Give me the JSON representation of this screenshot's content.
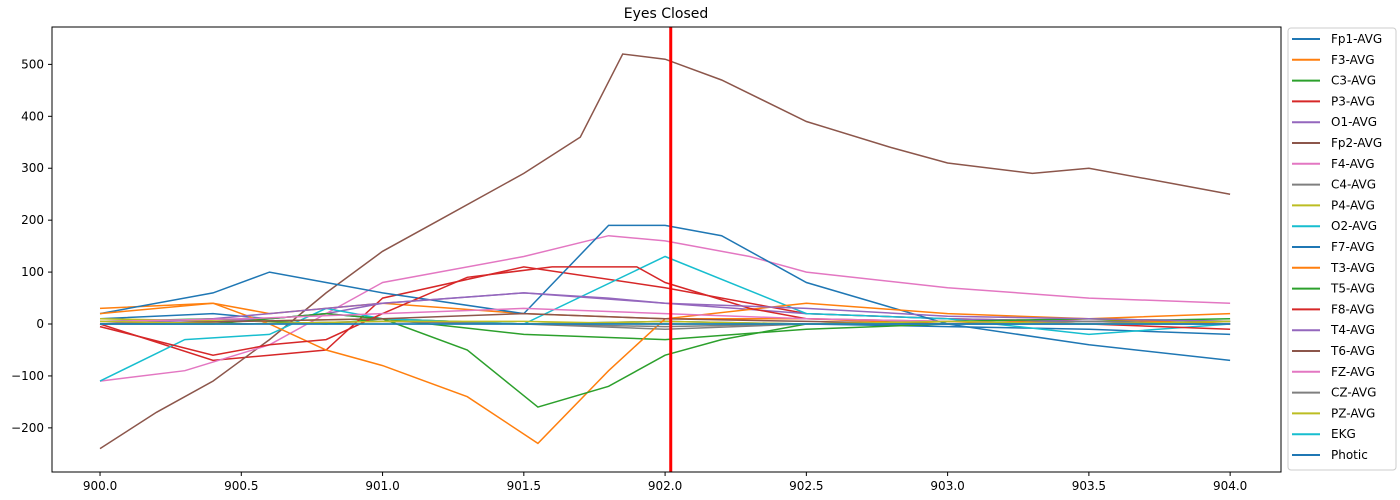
{
  "chart_data": {
    "type": "line",
    "title": "Eyes Closed",
    "xlabel": "",
    "ylabel": "",
    "xlim": [
      899.83,
      904.18
    ],
    "ylim": [
      -285,
      572
    ],
    "x_ticks": [
      900.0,
      900.5,
      901.0,
      901.5,
      902.0,
      902.5,
      903.0,
      903.5,
      904.0
    ],
    "x_tick_labels": [
      "900.0",
      "900.5",
      "901.0",
      "901.5",
      "902.0",
      "902.5",
      "903.0",
      "903.5",
      "904.0"
    ],
    "y_ticks": [
      -200,
      -100,
      0,
      100,
      200,
      300,
      400,
      500
    ],
    "y_tick_labels": [
      "−200",
      "−100",
      "0",
      "100",
      "200",
      "300",
      "400",
      "500"
    ],
    "grid": false,
    "legend_position": "outside-right",
    "marker_line": {
      "x": 902.02,
      "color": "#ff0000"
    },
    "series": [
      {
        "name": "Fp1-AVG",
        "color": "#1f77b4",
        "x": [
          900.0,
          900.4,
          900.6,
          900.8,
          901.0,
          901.5,
          902.0,
          902.5,
          903.0,
          903.5,
          904.0
        ],
        "values": [
          10,
          20,
          10,
          20,
          10,
          0,
          5,
          0,
          -5,
          -10,
          -20
        ]
      },
      {
        "name": "F3-AVG",
        "color": "#ff7f0e",
        "x": [
          900.0,
          900.4,
          900.6,
          900.8,
          901.0,
          901.5,
          902.0,
          902.5,
          903.0,
          903.5,
          904.0
        ],
        "values": [
          30,
          40,
          20,
          30,
          40,
          20,
          10,
          10,
          0,
          10,
          20
        ]
      },
      {
        "name": "C3-AVG",
        "color": "#2ca02c",
        "x": [
          900.0,
          900.4,
          900.6,
          900.8,
          901.0,
          901.5,
          902.0,
          902.5,
          903.0,
          903.5,
          904.0
        ],
        "values": [
          5,
          10,
          5,
          0,
          10,
          -20,
          -30,
          -10,
          0,
          5,
          10
        ]
      },
      {
        "name": "P3-AVG",
        "color": "#d62728",
        "x": [
          900.0,
          900.4,
          900.6,
          900.8,
          901.0,
          901.5,
          902.0,
          902.5,
          903.0,
          903.5,
          904.0
        ],
        "values": [
          0,
          -70,
          -60,
          -50,
          50,
          110,
          70,
          20,
          10,
          5,
          0
        ]
      },
      {
        "name": "O1-AVG",
        "color": "#9467bd",
        "x": [
          900.0,
          900.4,
          900.6,
          900.8,
          901.0,
          901.5,
          902.0,
          902.5,
          903.0,
          903.5,
          904.0
        ],
        "values": [
          0,
          5,
          10,
          20,
          40,
          60,
          40,
          20,
          10,
          5,
          0
        ]
      },
      {
        "name": "Fp2-AVG",
        "color": "#8c564b",
        "x": [
          900.0,
          900.2,
          900.4,
          900.6,
          900.8,
          901.0,
          901.2,
          901.5,
          901.7,
          901.85,
          902.0,
          902.2,
          902.5,
          902.8,
          903.0,
          903.3,
          903.5,
          903.8,
          904.0
        ],
        "values": [
          -240,
          -170,
          -110,
          -30,
          60,
          140,
          200,
          290,
          360,
          520,
          510,
          470,
          390,
          340,
          310,
          290,
          300,
          270,
          250
        ]
      },
      {
        "name": "F4-AVG",
        "color": "#e377c2",
        "x": [
          900.0,
          900.3,
          900.6,
          900.8,
          901.0,
          901.5,
          901.8,
          902.0,
          902.3,
          902.5,
          903.0,
          903.5,
          904.0
        ],
        "values": [
          -110,
          -90,
          -40,
          20,
          80,
          130,
          170,
          160,
          130,
          100,
          70,
          50,
          40
        ]
      },
      {
        "name": "C4-AVG",
        "color": "#7f7f7f",
        "x": [
          900.0,
          900.5,
          901.0,
          901.5,
          902.0,
          902.5,
          903.0,
          903.5,
          904.0
        ],
        "values": [
          5,
          0,
          5,
          0,
          -10,
          0,
          0,
          5,
          0
        ]
      },
      {
        "name": "P4-AVG",
        "color": "#bcbd22",
        "x": [
          900.0,
          900.5,
          901.0,
          901.5,
          902.0,
          902.5,
          903.0,
          903.5,
          904.0
        ],
        "values": [
          10,
          5,
          10,
          0,
          5,
          0,
          5,
          0,
          5
        ]
      },
      {
        "name": "O2-AVG",
        "color": "#17becf",
        "x": [
          900.0,
          900.3,
          900.6,
          900.8,
          901.0,
          901.5,
          902.0,
          902.5,
          903.0,
          903.5,
          904.0
        ],
        "values": [
          -110,
          -30,
          -20,
          30,
          10,
          0,
          130,
          20,
          10,
          -20,
          0
        ]
      },
      {
        "name": "F7-AVG",
        "color": "#1f77b4",
        "x": [
          900.0,
          900.4,
          900.6,
          900.8,
          901.0,
          901.5,
          901.8,
          902.0,
          902.2,
          902.5,
          903.0,
          903.5,
          904.0
        ],
        "values": [
          20,
          60,
          100,
          80,
          60,
          20,
          190,
          190,
          170,
          80,
          0,
          -40,
          -70
        ]
      },
      {
        "name": "T3-AVG",
        "color": "#ff7f0e",
        "x": [
          900.0,
          900.4,
          900.6,
          900.8,
          901.0,
          901.3,
          901.55,
          901.8,
          902.0,
          902.5,
          903.0,
          903.5,
          904.0
        ],
        "values": [
          20,
          40,
          0,
          -50,
          -80,
          -140,
          -230,
          -90,
          10,
          40,
          20,
          10,
          0
        ]
      },
      {
        "name": "T5-AVG",
        "color": "#2ca02c",
        "x": [
          900.0,
          900.4,
          900.6,
          900.8,
          901.0,
          901.3,
          901.55,
          901.8,
          902.0,
          902.2,
          902.5,
          903.0,
          903.5,
          904.0
        ],
        "values": [
          0,
          0,
          10,
          20,
          10,
          -50,
          -160,
          -120,
          -60,
          -30,
          0,
          5,
          10,
          5
        ]
      },
      {
        "name": "F8-AVG",
        "color": "#d62728",
        "x": [
          900.0,
          900.4,
          900.6,
          900.8,
          901.0,
          901.3,
          901.6,
          901.9,
          902.0,
          902.3,
          902.5,
          903.0,
          903.5,
          904.0
        ],
        "values": [
          -5,
          -60,
          -40,
          -30,
          20,
          90,
          110,
          110,
          80,
          30,
          10,
          5,
          0,
          -10
        ]
      },
      {
        "name": "T4-AVG",
        "color": "#9467bd",
        "x": [
          900.0,
          900.4,
          900.6,
          900.8,
          901.0,
          901.5,
          901.8,
          902.0,
          902.5,
          903.0,
          903.5,
          904.0
        ],
        "values": [
          0,
          10,
          20,
          30,
          40,
          60,
          50,
          40,
          30,
          15,
          10,
          5
        ]
      },
      {
        "name": "T6-AVG",
        "color": "#8c564b",
        "x": [
          900.0,
          900.5,
          901.0,
          901.5,
          902.0,
          902.5,
          903.0,
          903.5,
          904.0
        ],
        "values": [
          0,
          5,
          10,
          20,
          10,
          5,
          0,
          0,
          5
        ]
      },
      {
        "name": "FZ-AVG",
        "color": "#e377c2",
        "x": [
          900.0,
          900.5,
          901.0,
          901.5,
          902.0,
          902.5,
          903.0,
          903.5,
          904.0
        ],
        "values": [
          5,
          10,
          20,
          30,
          20,
          10,
          5,
          0,
          0
        ]
      },
      {
        "name": "CZ-AVG",
        "color": "#7f7f7f",
        "x": [
          900.0,
          900.5,
          901.0,
          901.5,
          902.0,
          902.5,
          903.0,
          903.5,
          904.0
        ],
        "values": [
          0,
          0,
          5,
          0,
          -5,
          0,
          0,
          0,
          0
        ]
      },
      {
        "name": "PZ-AVG",
        "color": "#bcbd22",
        "x": [
          900.0,
          900.5,
          901.0,
          901.5,
          902.0,
          902.5,
          903.0,
          903.5,
          904.0
        ],
        "values": [
          5,
          0,
          5,
          5,
          0,
          0,
          5,
          0,
          5
        ]
      },
      {
        "name": "EKG",
        "color": "#17becf",
        "x": [
          900.0,
          900.5,
          901.0,
          901.5,
          902.0,
          902.5,
          903.0,
          903.5,
          904.0
        ],
        "values": [
          0,
          0,
          0,
          0,
          0,
          0,
          0,
          0,
          0
        ]
      },
      {
        "name": "Photic",
        "color": "#1f77b4",
        "x": [
          900.0,
          900.5,
          901.0,
          901.5,
          902.0,
          902.5,
          903.0,
          903.5,
          904.0
        ],
        "values": [
          0,
          0,
          0,
          0,
          0,
          0,
          0,
          0,
          0
        ]
      }
    ]
  }
}
